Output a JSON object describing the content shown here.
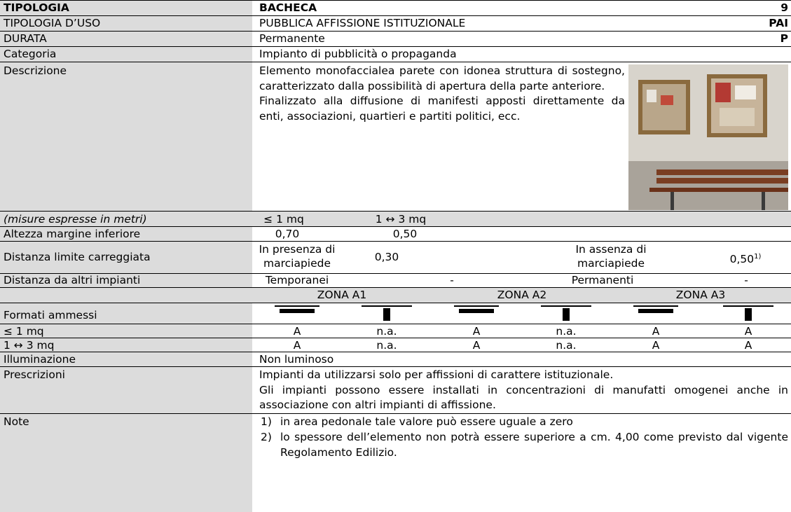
{
  "header": {
    "rows": [
      [
        "TIPOLOGIA",
        "BACHECA",
        "9"
      ],
      [
        "TIPOLOGIA D’USO",
        "PUBBLICA AFFISSIONE ISTITUZIONALE",
        "PAI"
      ],
      [
        "DURATA",
        "Permanente",
        "P"
      ],
      [
        "Categoria",
        "Impianto di pubblicità o propaganda"
      ]
    ]
  },
  "description": {
    "label": "Descrizione",
    "paragraphs": [
      "Elemento monofaccialea parete con idonea struttura di sostegno, caratterizzato dalla possibilità di apertura della parte anteriore.",
      "Finalizzato alla diffusione di manifesti apposti direttamente da enti, associazioni, quartieri e partiti politici, ecc."
    ]
  },
  "measures": {
    "label": "(misure espresse in metri)",
    "sizes": [
      "≤ 1 mq",
      "1 ↔ 3 mq"
    ]
  },
  "bottom_height": {
    "label": "Altezza margine inferiore",
    "values": [
      "0,70",
      "0,50"
    ]
  },
  "carriageway": {
    "label": "Distanza limite carreggiata",
    "with_sidewalk": "In presenza di marciapiede",
    "with_value": "0,30",
    "without_sidewalk": "In assenza di marciapiede",
    "without_value": "0,50",
    "without_note": "1)"
  },
  "other_distance": {
    "label": "Distanza da altri impianti",
    "temporary": "Temporanei",
    "temporary_value": "-",
    "permanent": "Permanenti",
    "permanent_value": "-"
  },
  "zones": [
    "ZONA A1",
    "ZONA A2",
    "ZONA A3"
  ],
  "formats": {
    "label": "Formati ammessi",
    "rows": [
      {
        "label": "≤ 1 mq",
        "values": [
          "A",
          "n.a.",
          "A",
          "n.a.",
          "A",
          "A"
        ]
      },
      {
        "label": "1 ↔ 3 mq",
        "values": [
          "A",
          "n.a.",
          "A",
          "n.a.",
          "A",
          "A"
        ]
      }
    ]
  },
  "lighting": {
    "label": "Illuminazione",
    "value": "Non luminoso"
  },
  "prescriptions": {
    "label": "Prescrizioni",
    "paragraphs": [
      "Impianti da utilizzarsi solo per affissioni di carattere istituzionale.",
      "Gli impianti possono essere installati in concentrazioni di manufatti omogenei anche in associazione con altri impianti di affissione."
    ]
  },
  "notes": {
    "label": "Note",
    "items": [
      {
        "number": "1)",
        "text": "in area pedonale tale valore può essere uguale a zero"
      },
      {
        "number": "2)",
        "text": "lo spessore  dell’elemento non potrà essere superiore a cm. 4,00 come previsto dal vigente Regolamento Edilizio."
      }
    ]
  }
}
